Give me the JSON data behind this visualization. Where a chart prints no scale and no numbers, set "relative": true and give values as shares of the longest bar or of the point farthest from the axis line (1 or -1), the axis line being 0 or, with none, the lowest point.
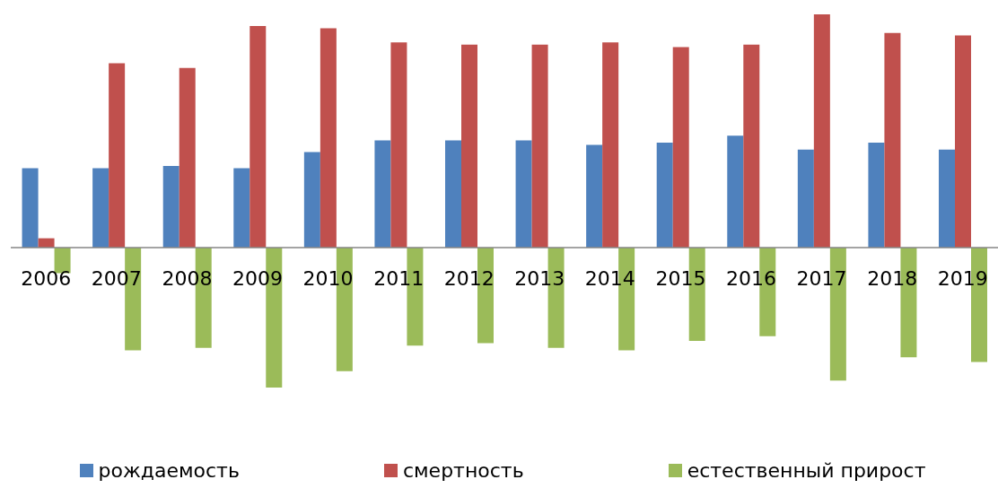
{
  "chart_data": {
    "type": "bar",
    "relative": true,
    "categories": [
      "2006",
      "2007",
      "2008",
      "2009",
      "2010",
      "2011",
      "2012",
      "2013",
      "2014",
      "2015",
      "2016",
      "2017",
      "2018",
      "2019"
    ],
    "series": [
      {
        "name": "рождаемость",
        "color": "#4f81bd",
        "values": [
          0.34,
          0.34,
          0.35,
          0.34,
          0.41,
          0.46,
          0.46,
          0.46,
          0.44,
          0.45,
          0.48,
          0.42,
          0.45,
          0.42
        ]
      },
      {
        "name": "смертность",
        "color": "#c0504d",
        "values": [
          0.04,
          0.79,
          0.77,
          0.95,
          0.94,
          0.88,
          0.87,
          0.87,
          0.88,
          0.86,
          0.87,
          1,
          0.92,
          0.91
        ]
      },
      {
        "name": "естественный прирост",
        "color": "#9bbb59",
        "values": [
          -0.11,
          -0.44,
          -0.43,
          -0.6,
          -0.53,
          -0.42,
          -0.41,
          -0.43,
          -0.44,
          -0.4,
          -0.38,
          -0.57,
          -0.47,
          -0.49
        ]
      }
    ],
    "grid": false,
    "legend": "bottom"
  }
}
